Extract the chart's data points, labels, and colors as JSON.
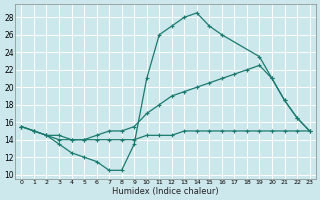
{
  "title": "",
  "xlabel": "Humidex (Indice chaleur)",
  "ylabel": "",
  "background_color": "#cde8ec",
  "grid_color": "#ffffff",
  "line_color": "#1a7a6e",
  "xlim": [
    -0.5,
    23.5
  ],
  "ylim": [
    9.5,
    29.5
  ],
  "xticks": [
    0,
    1,
    2,
    3,
    4,
    5,
    6,
    7,
    8,
    9,
    10,
    11,
    12,
    13,
    14,
    15,
    16,
    17,
    18,
    19,
    20,
    21,
    22,
    23
  ],
  "yticks": [
    10,
    12,
    14,
    16,
    18,
    20,
    22,
    24,
    26,
    28
  ],
  "series": [
    {
      "x": [
        0,
        1,
        2,
        3,
        4,
        5,
        6,
        7,
        8,
        9,
        10,
        11,
        12,
        13,
        14,
        15,
        16,
        19,
        20,
        21,
        22,
        23
      ],
      "y": [
        15.5,
        15.0,
        14.5,
        13.5,
        12.5,
        12.0,
        11.5,
        10.5,
        10.5,
        13.5,
        21.0,
        26.0,
        27.0,
        28.0,
        28.5,
        27.0,
        26.0,
        23.5,
        21.0,
        18.5,
        16.5,
        15.0
      ]
    },
    {
      "x": [
        0,
        1,
        2,
        3,
        4,
        5,
        6,
        7,
        8,
        9,
        10,
        11,
        12,
        13,
        14,
        15,
        16,
        17,
        18,
        19,
        20,
        21,
        22,
        23
      ],
      "y": [
        15.5,
        15.0,
        14.5,
        14.0,
        14.0,
        14.0,
        14.5,
        15.0,
        15.0,
        15.5,
        17.0,
        18.0,
        19.0,
        19.5,
        20.0,
        20.5,
        21.0,
        21.5,
        22.0,
        22.5,
        21.0,
        18.5,
        16.5,
        15.0
      ]
    },
    {
      "x": [
        0,
        1,
        2,
        3,
        4,
        5,
        6,
        7,
        8,
        9,
        10,
        11,
        12,
        13,
        14,
        15,
        16,
        17,
        18,
        19,
        20,
        21,
        22,
        23
      ],
      "y": [
        15.5,
        15.0,
        14.5,
        14.5,
        14.0,
        14.0,
        14.0,
        14.0,
        14.0,
        14.0,
        14.5,
        14.5,
        14.5,
        15.0,
        15.0,
        15.0,
        15.0,
        15.0,
        15.0,
        15.0,
        15.0,
        15.0,
        15.0,
        15.0
      ]
    }
  ]
}
